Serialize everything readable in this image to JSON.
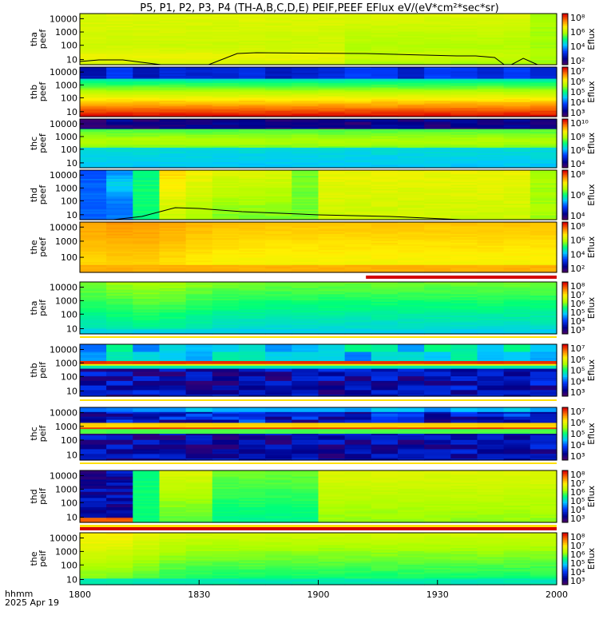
{
  "title": "P5, P1, P2, P3, P4 (TH-A,B,C,D,E) PEIF,PEEF EFlux eV/(eV*cm²*sec*sr)",
  "footer": {
    "label_line1": "hhmm",
    "label_line2": "2025 Apr 19"
  },
  "chart_data": {
    "type": "heatmap",
    "x_ticks": [
      "1800",
      "1830",
      "1900",
      "1930",
      "2000"
    ],
    "colorbar_label": "Eflux",
    "panels": [
      {
        "id": "tha-peef",
        "ylabel": [
          "tha",
          "peef"
        ],
        "yticks": [
          "10",
          "100",
          "1000",
          "10000"
        ],
        "cb_ticks": [
          "10²",
          "10⁴",
          "10⁶",
          "10⁸"
        ],
        "style": "tha_e",
        "line": [
          [
            0,
            4
          ],
          [
            0.04,
            6
          ],
          [
            0.09,
            6
          ],
          [
            0.17,
            0
          ],
          [
            0.27,
            0
          ],
          [
            0.33,
            14
          ],
          [
            0.37,
            15
          ],
          [
            0.6,
            14
          ],
          [
            0.79,
            11
          ],
          [
            0.83,
            11
          ],
          [
            0.87,
            9
          ],
          [
            0.89,
            0
          ],
          [
            0.905,
            0
          ],
          [
            0.93,
            8
          ],
          [
            0.96,
            0
          ]
        ]
      },
      {
        "id": "thb-peef",
        "ylabel": [
          "thb",
          "peef"
        ],
        "yticks": [
          "10",
          "100",
          "1000",
          "10000"
        ],
        "cb_ticks": [
          "10³",
          "10⁴",
          "10⁵",
          "10⁶",
          "10⁷"
        ],
        "style": "thb_e"
      },
      {
        "id": "thc-peef",
        "ylabel": [
          "thc",
          "peef"
        ],
        "yticks": [
          "10",
          "100",
          "1000",
          "10000"
        ],
        "cb_ticks": [
          "10⁴",
          "10⁶",
          "10⁸",
          "10¹⁰"
        ],
        "style": "thc_e"
      },
      {
        "id": "thd-peef",
        "ylabel": [
          "thd",
          "peef"
        ],
        "yticks": [
          "10",
          "100",
          "1000",
          "10000"
        ],
        "cb_ticks": [
          "10⁴",
          "10⁶",
          "10⁸"
        ],
        "style": "thd_e",
        "line": [
          [
            0.07,
            0
          ],
          [
            0.13,
            4
          ],
          [
            0.2,
            15
          ],
          [
            0.25,
            14
          ],
          [
            0.34,
            10
          ],
          [
            0.5,
            6
          ],
          [
            0.65,
            4
          ],
          [
            0.8,
            0
          ]
        ]
      },
      {
        "id": "the-peef",
        "ylabel": [
          "the",
          "peef"
        ],
        "yticks": [
          "100",
          "1000",
          "10000"
        ],
        "cb_ticks": [
          "10²",
          "10⁴",
          "10⁶",
          "10⁸"
        ],
        "style": "the_e",
        "bar_from": 0.6
      },
      {
        "id": "tha-peif",
        "ylabel": [
          "tha",
          "peif"
        ],
        "yticks": [
          "10",
          "100",
          "1000",
          "10000"
        ],
        "cb_ticks": [
          "10³",
          "10⁴",
          "10⁵",
          "10⁶",
          "10⁷",
          "10⁸"
        ],
        "style": "tha_i"
      },
      {
        "id": "thb-peif",
        "ylabel": [
          "thb",
          "peif"
        ],
        "yticks": [
          "10",
          "100",
          "1000",
          "10000"
        ],
        "cb_ticks": [
          "10³",
          "10⁴",
          "10⁵",
          "10⁶",
          "10⁷"
        ],
        "style": "thb_i"
      },
      {
        "id": "thc-peif",
        "ylabel": [
          "thc",
          "peif"
        ],
        "yticks": [
          "10",
          "100",
          "1000",
          "10000"
        ],
        "cb_ticks": [
          "10³",
          "10⁴",
          "10⁵",
          "10⁶",
          "10⁷"
        ],
        "style": "thc_i"
      },
      {
        "id": "thd-peif",
        "ylabel": [
          "thd",
          "peif"
        ],
        "yticks": [
          "10",
          "100",
          "1000",
          "10000"
        ],
        "cb_ticks": [
          "10³",
          "10⁴",
          "10⁵",
          "10⁶",
          "10⁷",
          "10⁸"
        ],
        "style": "thd_i",
        "bar_from": 0.0
      },
      {
        "id": "the-peif",
        "ylabel": [
          "the",
          "peif"
        ],
        "yticks": [
          "10",
          "100",
          "1000",
          "10000"
        ],
        "cb_ticks": [
          "10³",
          "10⁴",
          "10⁵",
          "10⁶",
          "10⁷",
          "10⁸"
        ],
        "style": "the_i"
      }
    ]
  }
}
